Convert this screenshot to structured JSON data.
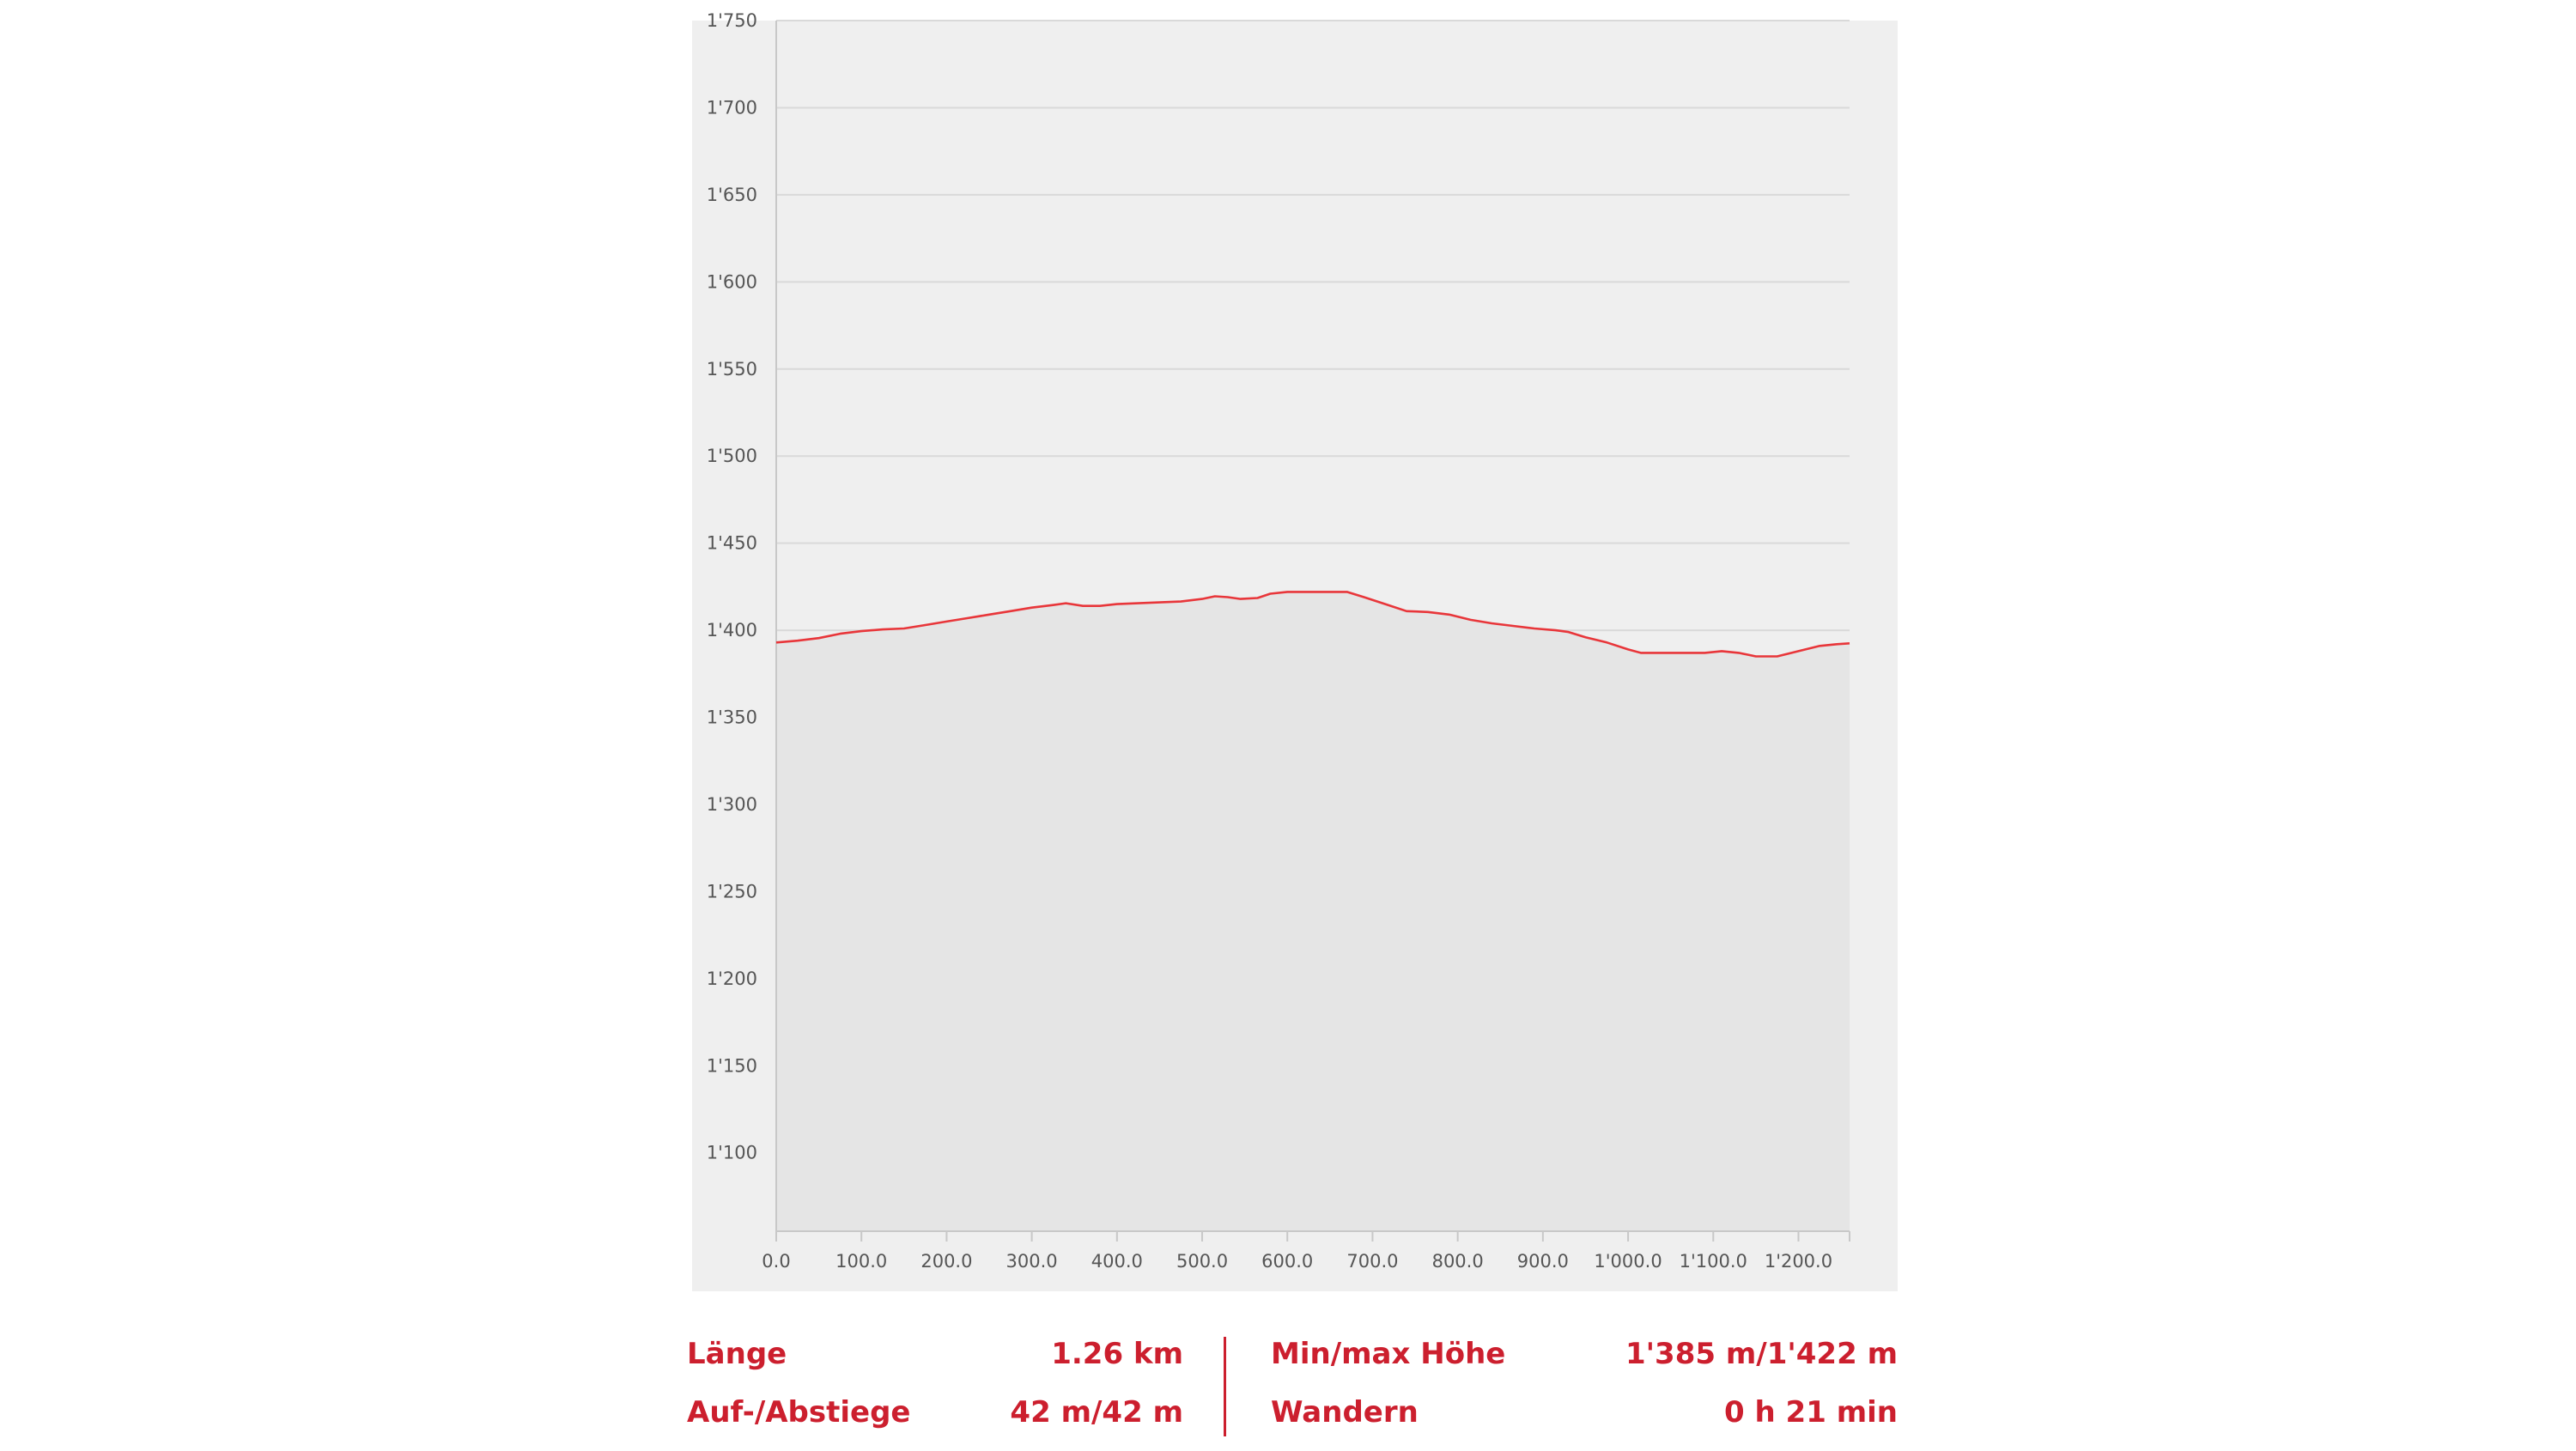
{
  "chart_data": {
    "type": "area",
    "x_ticks": [
      "0.0",
      "100.0",
      "200.0",
      "300.0",
      "400.0",
      "500.0",
      "600.0",
      "700.0",
      "800.0",
      "900.0",
      "1'000.0",
      "1'100.0",
      "1'200.0"
    ],
    "y_ticks": [
      "1'100",
      "1'150",
      "1'200",
      "1'250",
      "1'300",
      "1'350",
      "1'400",
      "1'450",
      "1'500",
      "1'550",
      "1'600",
      "1'650",
      "1'700",
      "1'750"
    ],
    "xlim": [
      0,
      1260
    ],
    "ylim": [
      1055,
      1750
    ],
    "grid": "horizontal",
    "colors": {
      "line": "#e8363a",
      "fill": "#e5e5e5",
      "plot_bg": "#efefef",
      "grid": "#d9d9d9",
      "text": "#cc1f2e"
    },
    "series": [
      {
        "x": [
          0,
          25,
          50,
          75,
          100,
          125,
          150,
          175,
          200,
          225,
          250,
          275,
          300,
          325,
          340,
          360,
          380,
          400,
          425,
          450,
          475,
          500,
          515,
          530,
          545,
          565,
          580,
          600,
          625,
          650,
          670,
          690,
          715,
          740,
          765,
          790,
          815,
          840,
          865,
          890,
          915,
          930,
          950,
          975,
          1000,
          1015,
          1040,
          1065,
          1090,
          1110,
          1130,
          1150,
          1175,
          1200,
          1225,
          1245,
          1260
        ],
        "y": [
          1393,
          1394,
          1395.5,
          1398,
          1399.5,
          1400.5,
          1401,
          1403,
          1405,
          1407,
          1409,
          1411,
          1413,
          1414.5,
          1415.5,
          1414,
          1414,
          1415,
          1415.5,
          1416,
          1416.5,
          1418,
          1419.5,
          1419,
          1418,
          1418.5,
          1421,
          1422,
          1422,
          1422,
          1422,
          1419,
          1415,
          1411,
          1410.5,
          1409,
          1406,
          1404,
          1402.5,
          1401,
          1400,
          1399,
          1396,
          1393,
          1389,
          1387,
          1387,
          1387,
          1387,
          1388,
          1387,
          1385,
          1385,
          1388,
          1391,
          1392,
          1392.5
        ]
      }
    ]
  },
  "stats": {
    "laenge_label": "Länge",
    "laenge_value": "1.26 km",
    "aufab_label": "Auf-/Abstiege",
    "aufab_value": "42 m/42 m",
    "minmax_label": "Min/max Höhe",
    "minmax_value": "1'385 m/1'422 m",
    "wandern_label": "Wandern",
    "wandern_value": "0 h 21 min"
  }
}
